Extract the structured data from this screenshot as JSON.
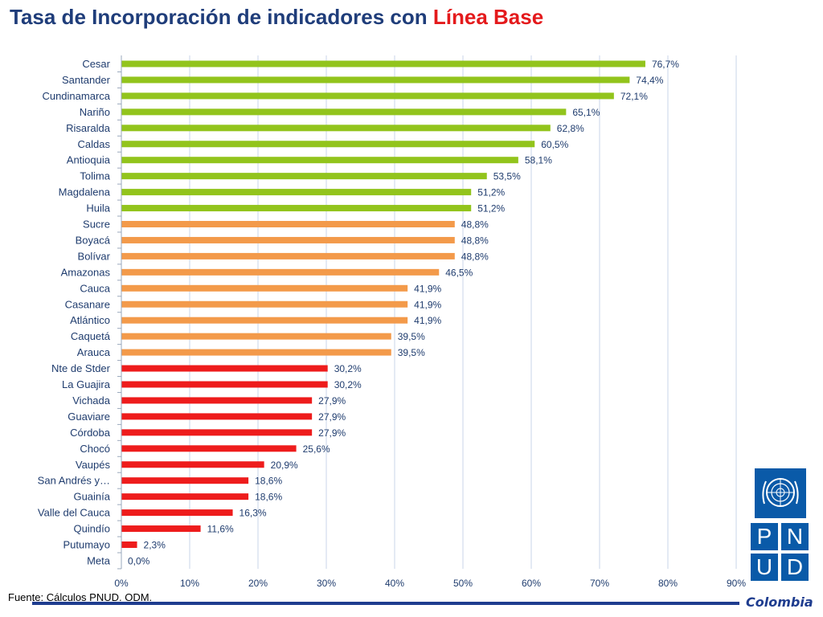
{
  "title": {
    "main": "Tasa de Incorporación de indicadores con",
    "accent": "Línea Base"
  },
  "source": "Fuente: Cálculos PNUD. ODM.",
  "logo": {
    "letters": [
      "P",
      "N",
      "U",
      "D"
    ],
    "country": "Colombia"
  },
  "colors": {
    "high": "#92c41c",
    "mid": "#f39a4a",
    "low": "#ee1c1c",
    "title": "#1f3d7a",
    "accent": "#e41a1c",
    "grid": "#c8d6ea",
    "label": "#1f3c6e"
  },
  "chart_data": {
    "type": "bar",
    "orientation": "horizontal",
    "title": "Tasa de Incorporación de indicadores con Línea Base",
    "categories": [
      "Cesar",
      "Santander",
      "Cundinamarca",
      "Nariño",
      "Risaralda",
      "Caldas",
      "Antioquia",
      "Tolima",
      "Magdalena",
      "Huila",
      "Sucre",
      "Boyacá",
      "Bolívar",
      "Amazonas",
      "Cauca",
      "Casanare",
      "Atlántico",
      "Caquetá",
      "Arauca",
      "Nte de Stder",
      "La Guajira",
      "Vichada",
      "Guaviare",
      "Córdoba",
      "Chocó",
      "Vaupés",
      "San Andrés y…",
      "Guainía",
      "Valle del Cauca",
      "Quindío",
      "Putumayo",
      "Meta"
    ],
    "values": [
      76.7,
      74.4,
      72.1,
      65.1,
      62.8,
      60.5,
      58.1,
      53.5,
      51.2,
      51.2,
      48.8,
      48.8,
      48.8,
      46.5,
      41.9,
      41.9,
      41.9,
      39.5,
      39.5,
      30.2,
      30.2,
      27.9,
      27.9,
      27.9,
      25.6,
      20.9,
      18.6,
      18.6,
      16.3,
      11.6,
      2.3,
      0.0
    ],
    "value_labels": [
      "76,7%",
      "74,4%",
      "72,1%",
      "65,1%",
      "62,8%",
      "60,5%",
      "58,1%",
      "53,5%",
      "51,2%",
      "51,2%",
      "48,8%",
      "48,8%",
      "48,8%",
      "46,5%",
      "41,9%",
      "41,9%",
      "41,9%",
      "39,5%",
      "39,5%",
      "30,2%",
      "30,2%",
      "27,9%",
      "27,9%",
      "27,9%",
      "25,6%",
      "20,9%",
      "18,6%",
      "18,6%",
      "16,3%",
      "11,6%",
      "2,3%",
      "0,0%"
    ],
    "color_groups": [
      "high",
      "high",
      "high",
      "high",
      "high",
      "high",
      "high",
      "high",
      "high",
      "high",
      "mid",
      "mid",
      "mid",
      "mid",
      "mid",
      "mid",
      "mid",
      "mid",
      "mid",
      "low",
      "low",
      "low",
      "low",
      "low",
      "low",
      "low",
      "low",
      "low",
      "low",
      "low",
      "low",
      "low"
    ],
    "xlim": [
      0,
      90
    ],
    "xticks": [
      0,
      10,
      20,
      30,
      40,
      50,
      60,
      70,
      80,
      90
    ],
    "xtick_labels": [
      "0%",
      "10%",
      "20%",
      "30%",
      "40%",
      "50%",
      "60%",
      "70%",
      "80%",
      "90%"
    ],
    "grid": true,
    "xlabel": "",
    "ylabel": ""
  }
}
